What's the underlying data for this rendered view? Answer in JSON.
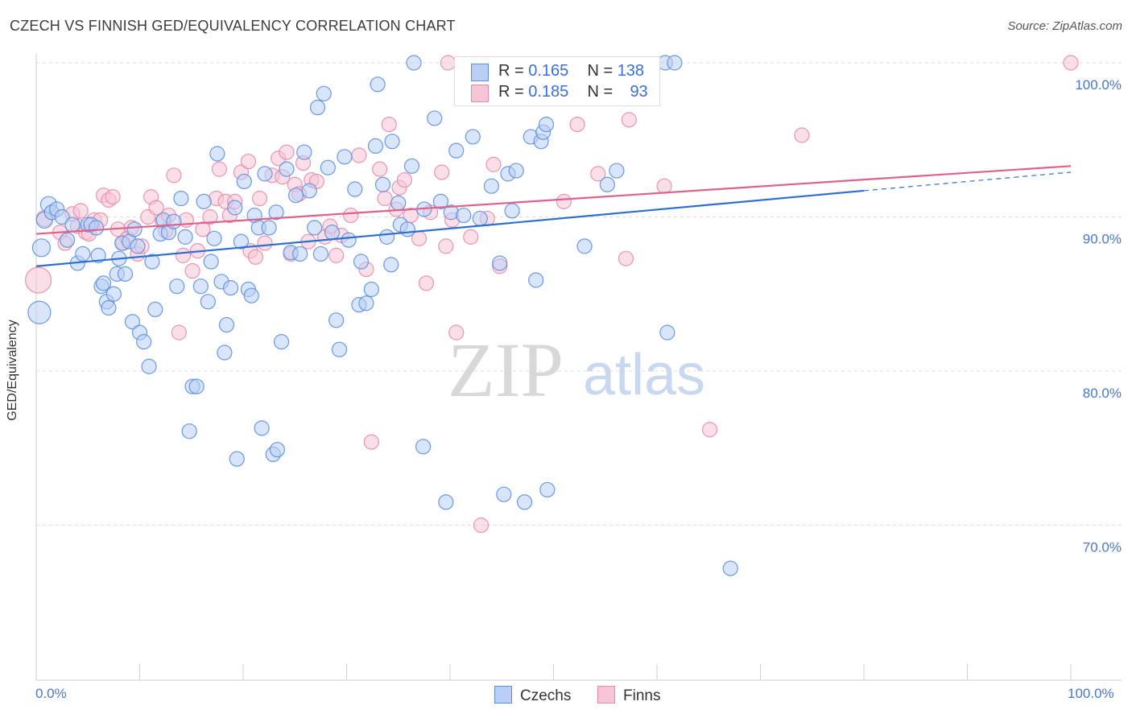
{
  "title": "CZECH VS FINNISH GED/EQUIVALENCY CORRELATION CHART",
  "source": "Source: ZipAtlas.com",
  "watermark": {
    "zip": "ZIP",
    "atlas": "atlas"
  },
  "legend": {
    "czechs": {
      "r_label": "R =",
      "r_value": "0.165",
      "n_label": "N =",
      "n_value": "138"
    },
    "finns": {
      "r_label": "R =",
      "r_value": "0.185",
      "n_label": "N =",
      "n_value": "93"
    }
  },
  "colors": {
    "czechs": "#5b8fe0",
    "czechs_fill": "#b9cff5",
    "czechs_line": "#2d6fcf",
    "finns": "#e98aa8",
    "finns_fill": "#f7c5d5",
    "finns_line": "#e0608c",
    "tick_text": "#4a78c8",
    "grid": "#dedede"
  },
  "chart_data": {
    "type": "scatter",
    "title": "CZECH VS FINNISH GED/EQUIVALENCY CORRELATION CHART",
    "xlabel": "",
    "ylabel": "GED/Equivalency",
    "xlim": [
      0,
      100
    ],
    "ylim": [
      60,
      101
    ],
    "x_ticks": [
      "0.0%",
      "100.0%"
    ],
    "y_ticks": [
      {
        "value": 100,
        "label": "100.0%"
      },
      {
        "value": 90,
        "label": "90.0%"
      },
      {
        "value": 80,
        "label": "80.0%"
      },
      {
        "value": 70,
        "label": "70.0%"
      }
    ],
    "grid": true,
    "legend_position": "top-center",
    "series": [
      {
        "name": "Czechs",
        "trend": {
          "x0": 0,
          "y0": 86.8,
          "x1": 80,
          "y1": 91.7,
          "dashed_to_x": 100,
          "dashed_to_y": 92.9
        },
        "points": [
          [
            0.3,
            83.8,
            14
          ],
          [
            0.5,
            88.0,
            11
          ],
          [
            0.8,
            89.8,
            10
          ],
          [
            1.2,
            90.8,
            10
          ],
          [
            1.5,
            90.3,
            9
          ],
          [
            2.0,
            90.5,
            9
          ],
          [
            2.5,
            90.0,
            9
          ],
          [
            3.0,
            88.5,
            9
          ],
          [
            3.5,
            89.5,
            9
          ],
          [
            4.0,
            87.0,
            9
          ],
          [
            4.5,
            87.6,
            9
          ],
          [
            5.0,
            89.5,
            9
          ],
          [
            5.3,
            89.5,
            9
          ],
          [
            5.8,
            89.3,
            9
          ],
          [
            6.0,
            87.5,
            9
          ],
          [
            6.3,
            85.5,
            9
          ],
          [
            6.5,
            85.7,
            9
          ],
          [
            6.8,
            84.5,
            9
          ],
          [
            7.0,
            84.1,
            9
          ],
          [
            7.5,
            85.0,
            9
          ],
          [
            7.8,
            86.3,
            9
          ],
          [
            8.0,
            87.3,
            9
          ],
          [
            8.3,
            88.3,
            9
          ],
          [
            8.6,
            86.3,
            9
          ],
          [
            9.0,
            88.4,
            9
          ],
          [
            9.3,
            83.2,
            9
          ],
          [
            9.5,
            89.2,
            9
          ],
          [
            9.8,
            88.1,
            9
          ],
          [
            10.0,
            82.5,
            9
          ],
          [
            10.4,
            81.9,
            9
          ],
          [
            10.9,
            80.3,
            9
          ],
          [
            11.2,
            87.1,
            9
          ],
          [
            11.5,
            84.0,
            9
          ],
          [
            12.0,
            88.9,
            9
          ],
          [
            12.3,
            89.8,
            9
          ],
          [
            12.8,
            89.0,
            9
          ],
          [
            13.3,
            89.7,
            9
          ],
          [
            13.6,
            85.5,
            9
          ],
          [
            14.0,
            91.2,
            9
          ],
          [
            14.4,
            88.7,
            9
          ],
          [
            14.8,
            76.1,
            9
          ],
          [
            15.1,
            79.0,
            9
          ],
          [
            15.5,
            79.0,
            9
          ],
          [
            15.9,
            85.5,
            9
          ],
          [
            16.2,
            91.0,
            9
          ],
          [
            16.6,
            84.5,
            9
          ],
          [
            16.9,
            87.1,
            9
          ],
          [
            17.2,
            88.6,
            9
          ],
          [
            17.5,
            94.1,
            9
          ],
          [
            17.9,
            85.8,
            9
          ],
          [
            18.2,
            81.2,
            9
          ],
          [
            18.4,
            83.0,
            9
          ],
          [
            18.8,
            85.4,
            9
          ],
          [
            19.2,
            90.6,
            9
          ],
          [
            19.4,
            74.3,
            9
          ],
          [
            19.8,
            88.4,
            9
          ],
          [
            20.1,
            92.3,
            9
          ],
          [
            20.5,
            85.3,
            9
          ],
          [
            20.8,
            84.9,
            9
          ],
          [
            21.1,
            90.1,
            9
          ],
          [
            21.5,
            89.3,
            9
          ],
          [
            21.8,
            76.3,
            9
          ],
          [
            22.1,
            92.8,
            9
          ],
          [
            22.5,
            89.3,
            9
          ],
          [
            22.9,
            74.6,
            9
          ],
          [
            23.2,
            90.3,
            9
          ],
          [
            23.3,
            74.9,
            9
          ],
          [
            23.7,
            81.9,
            9
          ],
          [
            24.2,
            93.1,
            9
          ],
          [
            24.6,
            87.7,
            9
          ],
          [
            25.1,
            91.4,
            9
          ],
          [
            25.5,
            87.6,
            9
          ],
          [
            25.9,
            94.2,
            9
          ],
          [
            26.4,
            91.7,
            9
          ],
          [
            26.9,
            89.3,
            9
          ],
          [
            27.2,
            97.1,
            9
          ],
          [
            27.5,
            87.6,
            9
          ],
          [
            27.8,
            98.0,
            9
          ],
          [
            28.2,
            93.2,
            9
          ],
          [
            28.6,
            89.0,
            9
          ],
          [
            29.0,
            83.3,
            9
          ],
          [
            29.3,
            81.4,
            9
          ],
          [
            29.8,
            93.9,
            9
          ],
          [
            30.2,
            88.5,
            9
          ],
          [
            30.8,
            91.8,
            9
          ],
          [
            31.2,
            84.3,
            9
          ],
          [
            31.4,
            87.1,
            9
          ],
          [
            31.9,
            84.4,
            9
          ],
          [
            32.4,
            85.3,
            9
          ],
          [
            32.8,
            94.6,
            9
          ],
          [
            33.0,
            98.6,
            9
          ],
          [
            33.5,
            92.1,
            9
          ],
          [
            33.9,
            88.7,
            9
          ],
          [
            34.3,
            86.9,
            9
          ],
          [
            34.4,
            94.9,
            9
          ],
          [
            35.0,
            90.9,
            9
          ],
          [
            35.2,
            89.5,
            9
          ],
          [
            35.9,
            89.2,
            9
          ],
          [
            36.3,
            93.3,
            9
          ],
          [
            36.5,
            100.0,
            9
          ],
          [
            37.4,
            75.1,
            9
          ],
          [
            37.5,
            90.5,
            9
          ],
          [
            38.5,
            96.4,
            9
          ],
          [
            39.1,
            91.0,
            9
          ],
          [
            39.6,
            71.5,
            9
          ],
          [
            40.1,
            90.3,
            9
          ],
          [
            40.6,
            94.3,
            9
          ],
          [
            41.3,
            90.1,
            9
          ],
          [
            42.2,
            95.2,
            9
          ],
          [
            42.9,
            89.9,
            9
          ],
          [
            44.0,
            92.0,
            9
          ],
          [
            44.8,
            87.0,
            9
          ],
          [
            45.2,
            72.0,
            9
          ],
          [
            45.6,
            92.8,
            9
          ],
          [
            46.0,
            90.4,
            9
          ],
          [
            46.4,
            93.0,
            9
          ],
          [
            47.2,
            71.5,
            9
          ],
          [
            47.8,
            95.2,
            9
          ],
          [
            48.3,
            85.9,
            9
          ],
          [
            48.8,
            94.9,
            9
          ],
          [
            49.0,
            95.5,
            9
          ],
          [
            49.3,
            96.0,
            9
          ],
          [
            49.4,
            72.3,
            9
          ],
          [
            53.0,
            88.1,
            9
          ],
          [
            55.2,
            92.1,
            9
          ],
          [
            56.1,
            93.0,
            9
          ],
          [
            60.8,
            100.0,
            9
          ],
          [
            61.0,
            82.5,
            9
          ],
          [
            61.7,
            100.0,
            9
          ],
          [
            67.1,
            67.2,
            9
          ]
        ]
      },
      {
        "name": "Finns",
        "trend": {
          "x0": 0,
          "y0": 88.9,
          "x1": 100,
          "y1": 93.3
        },
        "points": [
          [
            0.2,
            85.9,
            16
          ],
          [
            0.8,
            89.9,
            10
          ],
          [
            1.5,
            90.3,
            9
          ],
          [
            2.3,
            89.0,
            9
          ],
          [
            2.8,
            88.3,
            9
          ],
          [
            3.5,
            90.2,
            9
          ],
          [
            4.0,
            89.4,
            9
          ],
          [
            4.3,
            90.4,
            9
          ],
          [
            4.8,
            89.0,
            9
          ],
          [
            5.1,
            88.9,
            9
          ],
          [
            5.6,
            89.8,
            9
          ],
          [
            6.2,
            89.8,
            9
          ],
          [
            6.5,
            91.4,
            9
          ],
          [
            7.0,
            91.1,
            9
          ],
          [
            7.4,
            91.3,
            9
          ],
          [
            7.9,
            89.2,
            9
          ],
          [
            8.4,
            88.3,
            9
          ],
          [
            8.8,
            88.6,
            9
          ],
          [
            9.2,
            89.3,
            9
          ],
          [
            9.8,
            87.6,
            9
          ],
          [
            10.2,
            88.1,
            9
          ],
          [
            10.8,
            90.0,
            9
          ],
          [
            11.1,
            91.3,
            9
          ],
          [
            11.6,
            90.6,
            9
          ],
          [
            12.2,
            89.7,
            9
          ],
          [
            12.5,
            89.1,
            9
          ],
          [
            12.8,
            90.1,
            9
          ],
          [
            13.3,
            92.7,
            9
          ],
          [
            13.8,
            82.5,
            9
          ],
          [
            14.2,
            87.5,
            9
          ],
          [
            14.5,
            89.8,
            9
          ],
          [
            15.1,
            86.5,
            9
          ],
          [
            15.6,
            87.8,
            9
          ],
          [
            16.1,
            89.2,
            9
          ],
          [
            16.8,
            90.0,
            9
          ],
          [
            17.4,
            91.2,
            9
          ],
          [
            17.7,
            93.1,
            9
          ],
          [
            18.3,
            91.0,
            9
          ],
          [
            18.7,
            90.1,
            9
          ],
          [
            19.2,
            91.0,
            9
          ],
          [
            19.8,
            92.9,
            9
          ],
          [
            20.5,
            93.6,
            9
          ],
          [
            20.7,
            87.8,
            9
          ],
          [
            21.2,
            87.4,
            9
          ],
          [
            21.6,
            91.2,
            9
          ],
          [
            22.1,
            88.3,
            9
          ],
          [
            22.8,
            92.7,
            9
          ],
          [
            23.4,
            93.8,
            9
          ],
          [
            23.8,
            92.6,
            9
          ],
          [
            24.2,
            94.2,
            9
          ],
          [
            24.6,
            87.6,
            9
          ],
          [
            25.0,
            92.1,
            9
          ],
          [
            25.4,
            91.5,
            9
          ],
          [
            25.8,
            93.5,
            9
          ],
          [
            26.3,
            88.4,
            9
          ],
          [
            26.6,
            92.4,
            9
          ],
          [
            27.1,
            92.3,
            9
          ],
          [
            27.9,
            88.7,
            9
          ],
          [
            28.4,
            89.4,
            9
          ],
          [
            29.0,
            87.5,
            9
          ],
          [
            29.5,
            88.8,
            9
          ],
          [
            30.4,
            90.1,
            9
          ],
          [
            31.2,
            94.0,
            9
          ],
          [
            31.9,
            86.6,
            9
          ],
          [
            32.4,
            75.4,
            9
          ],
          [
            33.2,
            93.1,
            9
          ],
          [
            33.7,
            91.2,
            9
          ],
          [
            34.1,
            96.0,
            9
          ],
          [
            34.8,
            90.5,
            9
          ],
          [
            35.1,
            91.9,
            9
          ],
          [
            35.6,
            92.4,
            9
          ],
          [
            36.2,
            90.1,
            9
          ],
          [
            37.0,
            88.6,
            9
          ],
          [
            37.7,
            85.7,
            9
          ],
          [
            38.1,
            90.3,
            9
          ],
          [
            39.2,
            92.9,
            9
          ],
          [
            39.6,
            88.1,
            9
          ],
          [
            39.8,
            100.0,
            9
          ],
          [
            40.2,
            89.8,
            9
          ],
          [
            40.6,
            82.5,
            9
          ],
          [
            42.0,
            88.7,
            9
          ],
          [
            43.0,
            70.0,
            9
          ],
          [
            43.6,
            89.9,
            9
          ],
          [
            44.2,
            93.4,
            9
          ],
          [
            44.8,
            86.8,
            9
          ],
          [
            46.0,
            98.8,
            9
          ],
          [
            51.0,
            91.0,
            9
          ],
          [
            52.3,
            96.0,
            9
          ],
          [
            54.3,
            92.8,
            9
          ],
          [
            57.0,
            87.3,
            9
          ],
          [
            57.3,
            96.3,
            9
          ],
          [
            60.7,
            92.0,
            9
          ],
          [
            65.1,
            76.2,
            9
          ],
          [
            74.0,
            95.3,
            9
          ],
          [
            100.0,
            100.0,
            9
          ]
        ]
      }
    ]
  }
}
